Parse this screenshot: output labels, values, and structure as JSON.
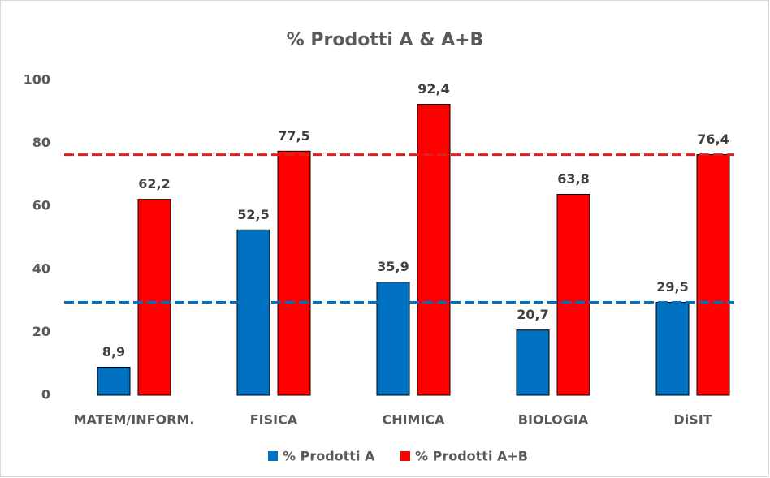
{
  "chart_data": {
    "type": "bar",
    "title": "% Prodotti A & A+B",
    "categories": [
      "MATEM/INFORM.",
      "FISICA",
      "CHIMICA",
      "BIOLOGIA",
      "DiSIT"
    ],
    "series": [
      {
        "name": "% Prodotti A",
        "color": "#0070c0",
        "values": [
          8.9,
          52.5,
          35.9,
          20.7,
          29.5
        ],
        "value_labels": [
          "8,9",
          "52,5",
          "35,9",
          "20,7",
          "29,5"
        ]
      },
      {
        "name": "% Prodotti A+B",
        "color": "#ff0000",
        "values": [
          62.2,
          77.5,
          92.4,
          63.8,
          76.4
        ],
        "value_labels": [
          "62,2",
          "77,5",
          "92,4",
          "63,8",
          "76,4"
        ]
      }
    ],
    "reference_lines": [
      {
        "color": "#0070c0",
        "value": 29.5
      },
      {
        "color": "#e02020",
        "value": 76.4
      }
    ],
    "ylim": [
      0,
      100
    ],
    "yticks": [
      0,
      20,
      40,
      60,
      80,
      100
    ],
    "grid": false,
    "legend": "bottom"
  }
}
